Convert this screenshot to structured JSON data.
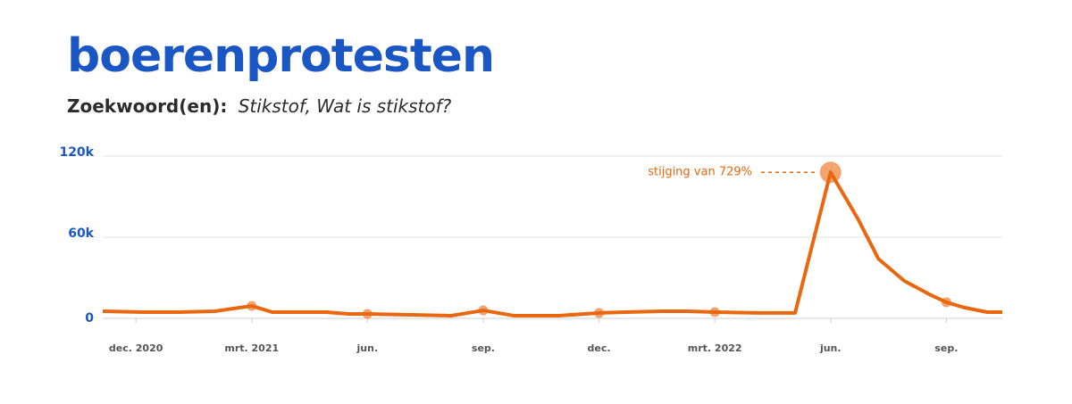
{
  "chart_data": {
    "type": "line",
    "title": "boerenprotesten",
    "subtitle_label": "Zoekwoord(en):",
    "subtitle": "Stikstof, Wat is stikstof?",
    "annotation": "stijging van 729%",
    "color": "#e8670f",
    "grid": true,
    "x": [
      -0.86,
      0.19,
      1.11,
      2.04,
      3,
      3.54,
      4.24,
      4.93,
      5.51,
      6,
      7.13,
      8.17,
      9,
      9.79,
      10.95,
      12,
      12.69,
      13.61,
      14.31,
      15,
      16.16,
      17.08,
      18,
      18.7,
      19.24,
      19.91,
      20.56,
      21,
      21.48,
      22.06,
      22.45
    ],
    "values": [
      5300,
      4600,
      4600,
      5300,
      9200,
      4600,
      4600,
      4600,
      3300,
      3300,
      2600,
      2000,
      5900,
      2000,
      2000,
      4000,
      4600,
      5300,
      5300,
      4600,
      4000,
      4000,
      108000,
      74000,
      44000,
      27700,
      17800,
      11900,
      7900,
      4600,
      4600
    ],
    "xlim": [
      -0.86,
      22.45
    ],
    "xticks": [
      {
        "value": 0,
        "label": "dec. 2020"
      },
      {
        "value": 3,
        "label": "mrt. 2021"
      },
      {
        "value": 6,
        "label": "jun."
      },
      {
        "value": 9,
        "label": "sep."
      },
      {
        "value": 12,
        "label": "dec."
      },
      {
        "value": 15,
        "label": "mrt. 2022"
      },
      {
        "value": 18,
        "label": "jun."
      },
      {
        "value": 21,
        "label": "sep."
      }
    ],
    "ylim": [
      0,
      120000
    ],
    "yticks": [
      0,
      {
        "value": 60000,
        "label": "60k"
      },
      {
        "value": 120000,
        "label": "120k"
      }
    ]
  }
}
